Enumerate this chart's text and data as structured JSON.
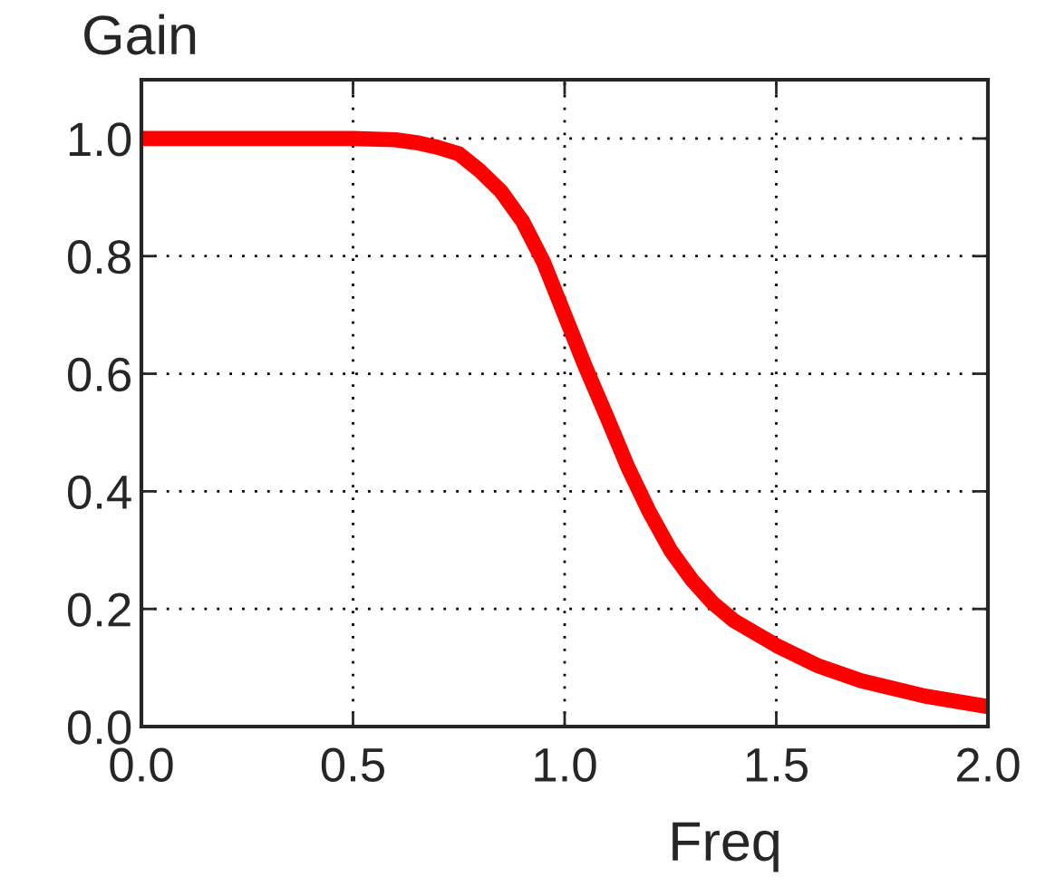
{
  "chart_data": {
    "type": "line",
    "xlabel": "Freq",
    "ylabel": "Gain",
    "x": [
      0.0,
      0.3,
      0.5,
      0.6,
      0.65,
      0.7,
      0.75,
      0.8,
      0.85,
      0.9,
      0.95,
      1.0,
      1.05,
      1.1,
      1.15,
      1.2,
      1.25,
      1.3,
      1.35,
      1.4,
      1.5,
      1.6,
      1.7,
      1.85,
      2.0
    ],
    "series": [
      {
        "color": "#ff0000",
        "values": [
          1.0,
          1.0,
          1.0,
          0.998,
          0.993,
          0.985,
          0.974,
          0.945,
          0.91,
          0.86,
          0.79,
          0.7,
          0.61,
          0.526,
          0.44,
          0.365,
          0.3,
          0.25,
          0.21,
          0.18,
          0.138,
          0.103,
          0.078,
          0.052,
          0.034
        ]
      }
    ],
    "xlim": [
      0,
      2
    ],
    "ylim": [
      0,
      1.1
    ],
    "xticks": [
      {
        "value": 0,
        "label": "0.0"
      },
      0.5,
      {
        "value": 1,
        "label": "1.0"
      },
      1.5,
      {
        "value": 2,
        "label": "2.0"
      }
    ],
    "yticks": [
      {
        "value": 0,
        "label": "0.0"
      },
      0.2,
      0.4,
      0.6,
      0.8,
      {
        "value": 1,
        "label": "1.0"
      }
    ],
    "grid": true,
    "marker": "none",
    "line_style": "solid"
  }
}
